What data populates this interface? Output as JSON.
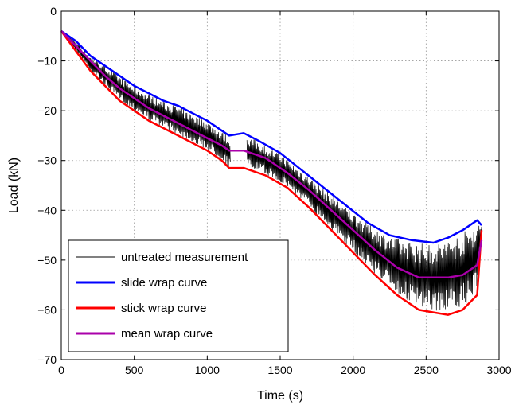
{
  "chart_data": {
    "type": "line",
    "title": "",
    "xlabel": "Time (s)",
    "ylabel": "Load (kN)",
    "xlim": [
      0,
      3000
    ],
    "ylim": [
      -70,
      0
    ],
    "xticks": [
      0,
      500,
      1000,
      1500,
      2000,
      2500,
      3000
    ],
    "yticks": [
      0,
      -10,
      -20,
      -30,
      -40,
      -50,
      -60,
      -70
    ],
    "grid": true,
    "legend_position": "bottom-left",
    "series": [
      {
        "name": "untreated measurement",
        "color": "#000000",
        "style": "oscillating signal between stick and slide curves",
        "gaps": [
          [
            1160,
            1270
          ]
        ]
      },
      {
        "name": "slide wrap curve",
        "color": "#0000ff",
        "x": [
          0,
          100,
          200,
          300,
          400,
          500,
          600,
          700,
          800,
          900,
          1000,
          1100,
          1150,
          1250,
          1350,
          1500,
          1650,
          1800,
          1950,
          2100,
          2250,
          2400,
          2550,
          2650,
          2750,
          2850,
          2880
        ],
        "y": [
          -4,
          -6,
          -9,
          -11,
          -13,
          -15,
          -16.5,
          -18,
          -19,
          -20.5,
          -22,
          -24,
          -25,
          -24.5,
          -26,
          -28.5,
          -32,
          -35.5,
          -39,
          -42.5,
          -45,
          -46,
          -46.5,
          -45.5,
          -44,
          -42,
          -43
        ]
      },
      {
        "name": "stick wrap curve",
        "color": "#ff0000",
        "x": [
          0,
          100,
          200,
          300,
          400,
          500,
          600,
          700,
          800,
          900,
          1000,
          1100,
          1150,
          1250,
          1400,
          1550,
          1700,
          1850,
          2000,
          2150,
          2300,
          2450,
          2550,
          2650,
          2750,
          2850,
          2880
        ],
        "y": [
          -4,
          -8,
          -12,
          -15,
          -18,
          -20,
          -22,
          -23.5,
          -25,
          -26.5,
          -28,
          -30,
          -31.5,
          -31.5,
          -33,
          -35.5,
          -39.5,
          -44,
          -48.5,
          -53,
          -57,
          -60,
          -60.5,
          -61,
          -60,
          -57,
          -44
        ]
      },
      {
        "name": "mean wrap curve",
        "color": "#aa00aa",
        "x": [
          0,
          100,
          200,
          300,
          400,
          500,
          600,
          700,
          800,
          900,
          1000,
          1100,
          1150,
          1250,
          1400,
          1550,
          1700,
          1850,
          2000,
          2150,
          2300,
          2450,
          2550,
          2650,
          2750,
          2850,
          2880
        ],
        "y": [
          -4,
          -7,
          -10,
          -13,
          -15.5,
          -17.5,
          -19.5,
          -21,
          -22.5,
          -24,
          -25.5,
          -27,
          -28,
          -28,
          -29.5,
          -32.5,
          -36,
          -40,
          -44,
          -48,
          -51.5,
          -53.5,
          -53.5,
          -53.5,
          -53,
          -51,
          -46
        ]
      }
    ]
  }
}
